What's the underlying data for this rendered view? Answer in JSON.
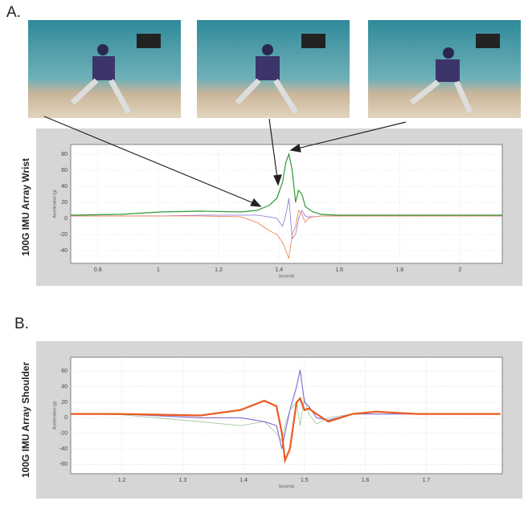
{
  "panel_labels": [
    "A.",
    "B."
  ],
  "chart_data": [
    {
      "type": "line",
      "side_label": "100G IMU Array Wrist",
      "ylabel": "Acceleration (g)",
      "xlabel": "Seconds",
      "xlim": [
        0.71,
        2.14
      ],
      "xticks": [
        0.8,
        1,
        1.2,
        1.4,
        1.6,
        1.8,
        2
      ],
      "ylim": [
        -56,
        92
      ],
      "yticks": [
        80,
        60,
        40,
        20,
        0,
        -20,
        -40
      ],
      "grid": true,
      "x": [
        0.71,
        0.875,
        1.008,
        1.141,
        1.274,
        1.327,
        1.367,
        1.393,
        1.412,
        1.423,
        1.433,
        1.444,
        1.455,
        1.465,
        1.476,
        1.487,
        1.497,
        1.513,
        1.54,
        1.593,
        1.673,
        1.806,
        1.965,
        2.14
      ],
      "series": [
        {
          "color": "#2e9a35",
          "values": [
            4,
            5,
            8,
            9,
            8,
            10,
            16,
            25,
            45,
            70,
            80,
            60,
            20,
            35,
            30,
            15,
            12,
            8,
            5,
            4,
            4,
            4,
            4,
            4
          ]
        },
        {
          "color": "#8b74d4",
          "values": [
            3,
            3,
            3,
            4,
            4,
            4,
            2,
            0,
            -10,
            5,
            25,
            -25,
            -20,
            0,
            10,
            3,
            2,
            2,
            3,
            3,
            3,
            3,
            3,
            3
          ]
        },
        {
          "color": "#f0784a",
          "values": [
            3,
            3,
            3,
            3,
            2,
            -5,
            -15,
            -20,
            -30,
            -40,
            -50,
            -20,
            -10,
            10,
            5,
            -5,
            0,
            2,
            3,
            3,
            3,
            3,
            3,
            3
          ]
        }
      ]
    },
    {
      "type": "line",
      "side_label": "100G IMU Array Shoulder",
      "ylabel": "Acceleration (g)",
      "xlabel": "Seconds",
      "xlim": [
        1.116,
        1.825
      ],
      "xticks": [
        1.2,
        1.3,
        1.4,
        1.5,
        1.6,
        1.7
      ],
      "ylim": [
        -72,
        78
      ],
      "yticks": [
        60,
        40,
        20,
        0,
        -20,
        -40,
        -60
      ],
      "grid": true,
      "x": [
        1.116,
        1.197,
        1.329,
        1.395,
        1.434,
        1.454,
        1.463,
        1.468,
        1.476,
        1.487,
        1.493,
        1.5,
        1.507,
        1.52,
        1.539,
        1.579,
        1.618,
        1.684,
        1.822
      ],
      "series": [
        {
          "color": "#9cc49a",
          "values": [
            5,
            4,
            -5,
            -10,
            -5,
            -20,
            -30,
            -10,
            10,
            20,
            -10,
            25,
            5,
            -8,
            0,
            5,
            5,
            5,
            5
          ]
        },
        {
          "color": "#8b74d4",
          "values": [
            5,
            5,
            0,
            0,
            -5,
            -10,
            -40,
            -20,
            10,
            40,
            62,
            20,
            15,
            0,
            -3,
            5,
            5,
            5,
            5
          ]
        },
        {
          "color": "#ec5a1e",
          "values": [
            5,
            5,
            3,
            10,
            22,
            15,
            -20,
            -55,
            -40,
            20,
            25,
            10,
            12,
            5,
            -5,
            5,
            8,
            5,
            5
          ]
        }
      ]
    }
  ]
}
